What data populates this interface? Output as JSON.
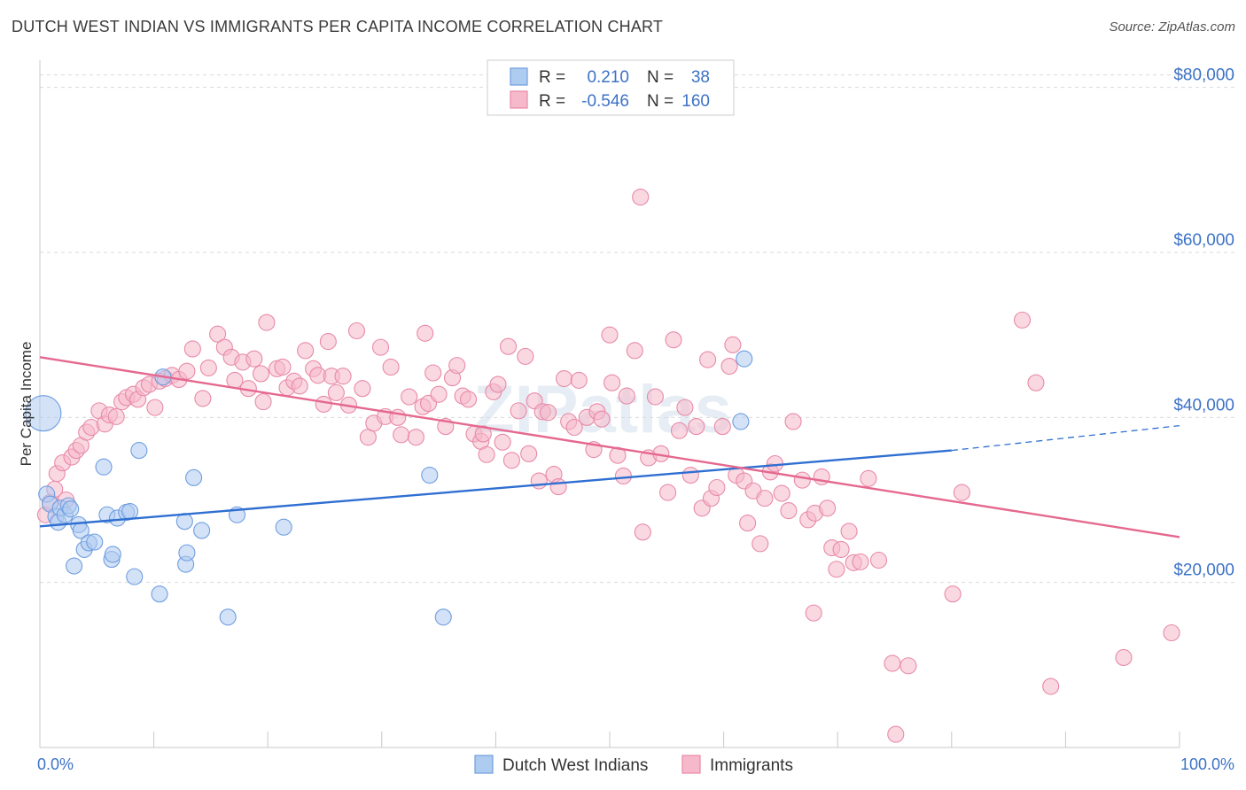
{
  "title": "DUTCH WEST INDIAN VS IMMIGRANTS PER CAPITA INCOME CORRELATION CHART",
  "source": "Source: ZipAtlas.com",
  "watermark": "ZIPatlas",
  "colors": {
    "blue_fill": "#aecbf0",
    "blue_stroke": "#6f9ee0",
    "blue_line": "#2f6fd1",
    "pink_fill": "#f6b8cb",
    "pink_stroke": "#e88aa8",
    "pink_line": "#e5688f",
    "accent_text": "#3c72c6",
    "grid": "#d9d9d9"
  },
  "legend": {
    "r_label": "R =",
    "n_label": "N =",
    "rows": [
      {
        "series": "blue",
        "r": "0.210",
        "n": "38"
      },
      {
        "series": "pink",
        "r": "-0.546",
        "n": "160"
      }
    ]
  },
  "bottom_legend": [
    "Dutch West Indians",
    "Immigrants"
  ],
  "chart_data": {
    "type": "scatter",
    "title": "DUTCH WEST INDIAN VS IMMIGRANTS PER CAPITA INCOME CORRELATION CHART",
    "xlabel": "",
    "ylabel": "Per Capita Income",
    "xlim": [
      0,
      100
    ],
    "ylim": [
      0,
      82000
    ],
    "x_tick_labels": [
      "0.0%",
      "100.0%"
    ],
    "y_ticks": [
      20000,
      40000,
      60000,
      80000
    ],
    "y_tick_labels": [
      "$20,000",
      "$40,000",
      "$60,000",
      "$80,000"
    ],
    "series": [
      {
        "name": "Dutch West Indians",
        "color": "blue",
        "r": 0.21,
        "n": 38,
        "trend": {
          "x0": 0,
          "y0": 26800,
          "x1": 80,
          "y1": 36000,
          "dash_x1": 100,
          "dash_y1": 39000
        },
        "points": [
          [
            0.3,
            40500,
            "big"
          ],
          [
            0.6,
            30700
          ],
          [
            0.9,
            29500
          ],
          [
            1.4,
            28000
          ],
          [
            1.6,
            27300
          ],
          [
            1.8,
            29000
          ],
          [
            2.2,
            28200
          ],
          [
            2.5,
            29300
          ],
          [
            2.7,
            28900
          ],
          [
            3.0,
            22000
          ],
          [
            3.4,
            27000
          ],
          [
            3.6,
            26300
          ],
          [
            3.9,
            24000
          ],
          [
            4.3,
            24800
          ],
          [
            4.8,
            24900
          ],
          [
            5.6,
            34000
          ],
          [
            5.9,
            28200
          ],
          [
            6.3,
            22800
          ],
          [
            6.4,
            23400
          ],
          [
            6.8,
            27800
          ],
          [
            7.6,
            28500
          ],
          [
            7.9,
            28600
          ],
          [
            8.3,
            20700
          ],
          [
            8.7,
            36000
          ],
          [
            10.5,
            18600
          ],
          [
            10.8,
            44900
          ],
          [
            12.7,
            27400
          ],
          [
            12.8,
            22200
          ],
          [
            12.9,
            23600
          ],
          [
            13.5,
            32700
          ],
          [
            14.2,
            26300
          ],
          [
            16.5,
            15800
          ],
          [
            17.3,
            28200
          ],
          [
            21.4,
            26700
          ],
          [
            34.2,
            33000
          ],
          [
            35.4,
            15800
          ],
          [
            61.5,
            39500
          ],
          [
            61.8,
            47100
          ]
        ]
      },
      {
        "name": "Immigrants",
        "color": "pink",
        "r": -0.546,
        "n": 160,
        "trend": {
          "x0": 0,
          "y0": 47300,
          "x1": 100,
          "y1": 25500
        },
        "points": [
          [
            0.5,
            28200
          ],
          [
            0.9,
            29700
          ],
          [
            1.3,
            31300
          ],
          [
            1.5,
            33200
          ],
          [
            2.0,
            34500
          ],
          [
            2.3,
            30000
          ],
          [
            2.8,
            35200
          ],
          [
            3.2,
            36000
          ],
          [
            3.6,
            36600
          ],
          [
            4.1,
            38200
          ],
          [
            4.5,
            38800
          ],
          [
            5.2,
            40800
          ],
          [
            5.7,
            39200
          ],
          [
            6.1,
            40300
          ],
          [
            6.7,
            40100
          ],
          [
            7.2,
            41900
          ],
          [
            7.6,
            42400
          ],
          [
            8.2,
            42800
          ],
          [
            8.6,
            42200
          ],
          [
            9.1,
            43600
          ],
          [
            9.6,
            44000
          ],
          [
            10.1,
            41200
          ],
          [
            10.5,
            44400
          ],
          [
            11.0,
            44700
          ],
          [
            11.6,
            45100
          ],
          [
            12.2,
            44600
          ],
          [
            12.9,
            45600
          ],
          [
            13.4,
            48300
          ],
          [
            14.3,
            42300
          ],
          [
            14.8,
            46000
          ],
          [
            15.6,
            50100
          ],
          [
            16.2,
            48500
          ],
          [
            16.8,
            47300
          ],
          [
            17.1,
            44500
          ],
          [
            17.8,
            46700
          ],
          [
            18.3,
            43500
          ],
          [
            18.8,
            47100
          ],
          [
            19.4,
            45300
          ],
          [
            19.6,
            41900
          ],
          [
            19.9,
            51500
          ],
          [
            20.8,
            45900
          ],
          [
            21.3,
            46100
          ],
          [
            21.7,
            43600
          ],
          [
            22.3,
            44400
          ],
          [
            22.8,
            43800
          ],
          [
            23.3,
            48100
          ],
          [
            24.0,
            45900
          ],
          [
            24.4,
            45100
          ],
          [
            24.9,
            41600
          ],
          [
            25.3,
            49200
          ],
          [
            25.6,
            45000
          ],
          [
            26.0,
            43000
          ],
          [
            26.6,
            45000
          ],
          [
            27.1,
            41500
          ],
          [
            27.8,
            50500
          ],
          [
            28.3,
            43500
          ],
          [
            28.8,
            37600
          ],
          [
            29.3,
            39300
          ],
          [
            29.9,
            48500
          ],
          [
            30.3,
            40100
          ],
          [
            30.8,
            46100
          ],
          [
            31.4,
            40000
          ],
          [
            31.7,
            37900
          ],
          [
            32.4,
            42500
          ],
          [
            33.0,
            37600
          ],
          [
            33.6,
            41300
          ],
          [
            33.8,
            50200
          ],
          [
            34.1,
            41700
          ],
          [
            34.5,
            45400
          ],
          [
            35.0,
            42800
          ],
          [
            35.6,
            38900
          ],
          [
            36.2,
            44800
          ],
          [
            36.6,
            46300
          ],
          [
            37.1,
            42600
          ],
          [
            37.6,
            42200
          ],
          [
            38.1,
            38000
          ],
          [
            38.7,
            37100
          ],
          [
            38.9,
            38000
          ],
          [
            39.2,
            35500
          ],
          [
            39.8,
            43100
          ],
          [
            40.2,
            44000
          ],
          [
            40.6,
            37000
          ],
          [
            41.1,
            48600
          ],
          [
            41.4,
            34800
          ],
          [
            42.0,
            40800
          ],
          [
            42.6,
            47400
          ],
          [
            42.9,
            35600
          ],
          [
            43.4,
            42000
          ],
          [
            43.8,
            32300
          ],
          [
            44.1,
            40700
          ],
          [
            44.6,
            40600
          ],
          [
            45.1,
            33100
          ],
          [
            45.5,
            31600
          ],
          [
            46.0,
            44700
          ],
          [
            46.4,
            39500
          ],
          [
            46.9,
            38800
          ],
          [
            47.3,
            44500
          ],
          [
            48.0,
            40000
          ],
          [
            48.6,
            36100
          ],
          [
            48.9,
            40700
          ],
          [
            49.3,
            39800
          ],
          [
            50.0,
            50000
          ],
          [
            50.2,
            44200
          ],
          [
            50.7,
            35400
          ],
          [
            51.2,
            32900
          ],
          [
            51.5,
            42600
          ],
          [
            52.2,
            48100
          ],
          [
            52.7,
            66700
          ],
          [
            52.9,
            26100
          ],
          [
            53.4,
            35100
          ],
          [
            54.0,
            42500
          ],
          [
            54.5,
            35600
          ],
          [
            55.1,
            30900
          ],
          [
            55.6,
            49400
          ],
          [
            56.1,
            38400
          ],
          [
            56.6,
            41200
          ],
          [
            57.1,
            33000
          ],
          [
            57.6,
            38900
          ],
          [
            58.1,
            29000
          ],
          [
            58.6,
            47000
          ],
          [
            58.9,
            30200
          ],
          [
            59.4,
            31500
          ],
          [
            59.9,
            38900
          ],
          [
            60.5,
            46200
          ],
          [
            60.8,
            48800
          ],
          [
            61.1,
            33000
          ],
          [
            61.8,
            32300
          ],
          [
            62.1,
            27200
          ],
          [
            62.6,
            31100
          ],
          [
            63.2,
            24700
          ],
          [
            63.6,
            30200
          ],
          [
            64.1,
            33400
          ],
          [
            64.5,
            34400
          ],
          [
            65.1,
            30800
          ],
          [
            65.7,
            28700
          ],
          [
            66.1,
            39500
          ],
          [
            66.9,
            32400
          ],
          [
            67.4,
            27600
          ],
          [
            68.0,
            28400
          ],
          [
            68.6,
            32800
          ],
          [
            69.1,
            29000
          ],
          [
            69.5,
            24200
          ],
          [
            69.9,
            21600
          ],
          [
            70.3,
            24000
          ],
          [
            71.0,
            26200
          ],
          [
            71.4,
            22400
          ],
          [
            72.0,
            22500
          ],
          [
            72.7,
            32600
          ],
          [
            73.6,
            22700
          ],
          [
            74.8,
            10200
          ],
          [
            75.1,
            1600
          ],
          [
            76.2,
            9900
          ],
          [
            80.1,
            18600
          ],
          [
            80.9,
            30900
          ],
          [
            86.2,
            51800
          ],
          [
            87.4,
            44200
          ],
          [
            88.7,
            7400
          ],
          [
            95.1,
            10900
          ],
          [
            99.3,
            13900
          ],
          [
            67.9,
            16300
          ]
        ]
      }
    ]
  }
}
